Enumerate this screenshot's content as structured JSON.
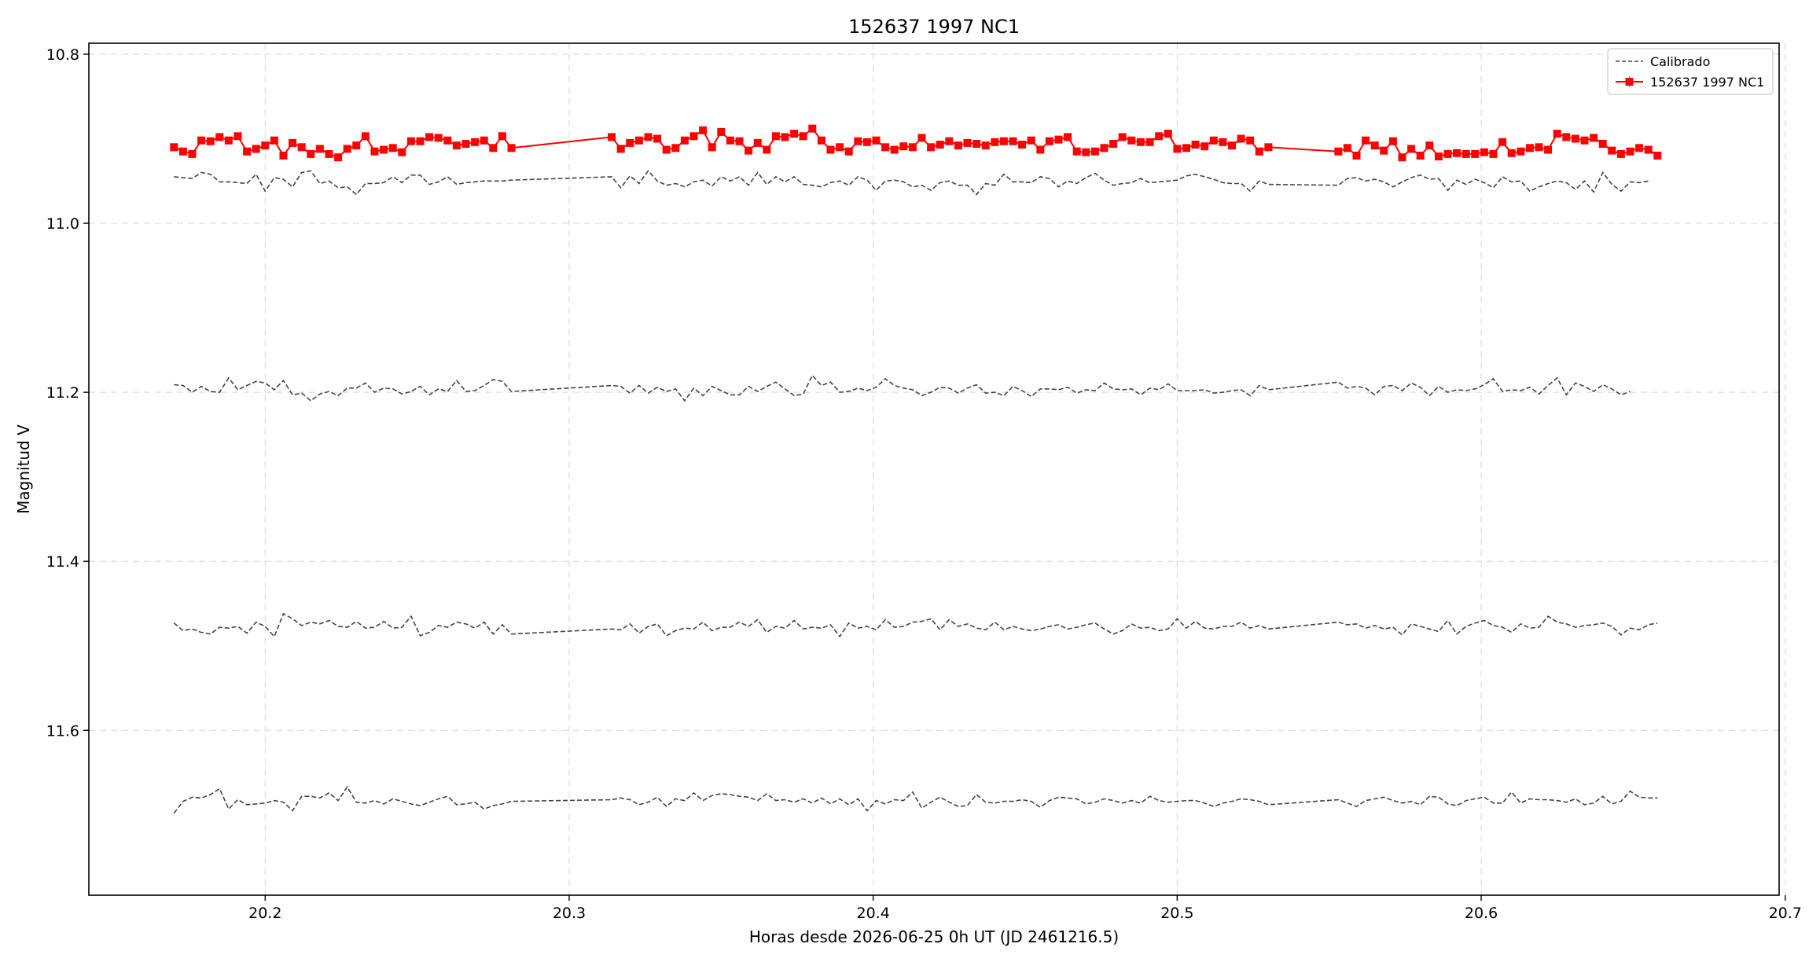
{
  "chart_data": {
    "type": "line",
    "title": "152637 1997 NC1",
    "xlabel": "Horas desde 2026-06-25 0h UT (JD 2461216.5)",
    "ylabel": "Magnitud V",
    "xlim": [
      20.142,
      20.698
    ],
    "ylim": [
      11.795,
      10.787
    ],
    "y_inverted": true,
    "grid": true,
    "legend_position": "top-right",
    "xticks": [
      20.2,
      20.3,
      20.4,
      20.5,
      20.6,
      20.7
    ],
    "yticks": [
      10.8,
      11.0,
      11.2,
      11.4,
      11.6
    ],
    "xtick_labels": [
      "20.2",
      "20.3",
      "20.4",
      "20.5",
      "20.6",
      "20.7"
    ],
    "ytick_labels": [
      "10.8",
      "11.0",
      "11.2",
      "11.4",
      "11.6"
    ],
    "legend": {
      "calibrated_label": "Calibrado",
      "target_label": "152637 1997 NC1"
    },
    "colors": {
      "target": "#ff0000",
      "calibrated": "#444444",
      "grid": "#dddddd"
    },
    "x_start": 20.17,
    "x_step": 0.003,
    "gap_after_index": 37,
    "gap_x_end": 20.314,
    "gap2_after_index": 110,
    "gap2_x_end": 20.553,
    "series": [
      {
        "name": "152637 1997 NC1",
        "values": [
          10.91,
          10.915,
          10.918,
          10.902,
          10.903,
          10.898,
          10.902,
          10.897,
          10.915,
          10.912,
          10.908,
          10.902,
          10.92,
          10.905,
          10.91,
          10.918,
          10.912,
          10.918,
          10.922,
          10.912,
          10.908,
          10.897,
          10.915,
          10.913,
          10.911,
          10.916,
          10.903,
          10.903,
          10.898,
          10.899,
          10.902,
          10.908,
          10.906,
          10.904,
          10.902,
          10.911,
          10.897,
          10.911,
          10.898,
          10.912,
          10.905,
          10.902,
          10.898,
          10.9,
          10.913,
          10.911,
          10.902,
          10.897,
          10.89,
          10.91,
          10.892,
          10.902,
          10.903,
          10.914,
          10.905,
          10.913,
          10.897,
          10.898,
          10.894,
          10.897,
          10.888,
          10.902,
          10.913,
          10.91,
          10.915,
          10.903,
          10.904,
          10.902,
          10.91,
          10.913,
          10.909,
          10.91,
          10.899,
          10.91,
          10.907,
          10.903,
          10.908,
          10.905,
          10.906,
          10.908,
          10.904,
          10.903,
          10.903,
          10.907,
          10.902,
          10.913,
          10.903,
          10.901,
          10.898,
          10.915,
          10.916,
          10.915,
          10.911,
          10.906,
          10.898,
          10.902,
          10.904,
          10.904,
          10.897,
          10.894,
          10.912,
          10.911,
          10.907,
          10.909,
          10.902,
          10.904,
          10.908,
          10.9,
          10.902,
          10.915,
          10.91,
          10.915,
          10.911,
          10.92,
          10.902,
          10.908,
          10.914,
          10.903,
          10.922,
          10.912,
          10.92,
          10.908,
          10.921,
          10.918,
          10.917,
          10.918,
          10.918,
          10.916,
          10.918,
          10.904,
          10.917,
          10.915,
          10.911,
          10.91,
          10.913,
          10.894,
          10.898,
          10.9,
          10.902,
          10.899,
          10.906,
          10.914,
          10.918,
          10.915,
          10.911,
          10.913,
          10.92
        ]
      },
      {
        "name": "Calibrado",
        "values": [
          10.945,
          10.946,
          10.947,
          10.94,
          10.942,
          10.951,
          10.951,
          10.952,
          10.953,
          10.942,
          10.962,
          10.946,
          10.948,
          10.957,
          10.94,
          10.938,
          10.953,
          10.95,
          10.958,
          10.957,
          10.966,
          10.953,
          10.953,
          10.952,
          10.945,
          10.952,
          10.943,
          10.943,
          10.954,
          10.951,
          10.945,
          10.954,
          10.952,
          10.951,
          10.95,
          10.95,
          10.95,
          10.949,
          10.945,
          10.958,
          10.944,
          10.953,
          10.938,
          10.95,
          10.955,
          10.953,
          10.957,
          10.951,
          10.949,
          10.956,
          10.945,
          10.95,
          10.945,
          10.955,
          10.94,
          10.954,
          10.945,
          10.951,
          10.945,
          10.954,
          10.955,
          10.957,
          10.952,
          10.95,
          10.955,
          10.945,
          10.949,
          10.961,
          10.95,
          10.949,
          10.951,
          10.957,
          10.955,
          10.961,
          10.952,
          10.95,
          10.955,
          10.955,
          10.966,
          10.953,
          10.955,
          10.942,
          10.951,
          10.951,
          10.952,
          10.945,
          10.947,
          10.957,
          10.95,
          10.953,
          10.946,
          10.941,
          10.949,
          10.955,
          10.953,
          10.952,
          10.947,
          10.952,
          10.951,
          10.95,
          10.949,
          10.944,
          10.942,
          10.945,
          10.948,
          10.952,
          10.953,
          10.953,
          10.962,
          10.95,
          10.954,
          10.955,
          10.947,
          10.946,
          10.95,
          10.948,
          10.951,
          10.957,
          10.951,
          10.946,
          10.943,
          10.948,
          10.947,
          10.961,
          10.949,
          10.954,
          10.948,
          10.952,
          10.958,
          10.945,
          10.951,
          10.95,
          10.962,
          10.957,
          10.953,
          10.95,
          10.952,
          10.96,
          10.95,
          10.963,
          10.94,
          10.954,
          10.962,
          10.951,
          10.952,
          10.95
        ]
      },
      {
        "name": "",
        "values": [
          11.191,
          11.192,
          11.2,
          11.193,
          11.199,
          11.2,
          11.183,
          11.197,
          11.192,
          11.187,
          11.189,
          11.197,
          11.186,
          11.203,
          11.201,
          11.21,
          11.202,
          11.199,
          11.204,
          11.195,
          11.195,
          11.189,
          11.2,
          11.195,
          11.196,
          11.202,
          11.199,
          11.193,
          11.203,
          11.196,
          11.199,
          11.186,
          11.199,
          11.198,
          11.192,
          11.185,
          11.187,
          11.199,
          11.192,
          11.193,
          11.201,
          11.192,
          11.201,
          11.194,
          11.199,
          11.196,
          11.21,
          11.195,
          11.204,
          11.193,
          11.198,
          11.203,
          11.203,
          11.193,
          11.199,
          11.193,
          11.188,
          11.196,
          11.204,
          11.202,
          11.18,
          11.192,
          11.188,
          11.2,
          11.199,
          11.195,
          11.198,
          11.194,
          11.184,
          11.192,
          11.195,
          11.197,
          11.204,
          11.2,
          11.194,
          11.195,
          11.201,
          11.195,
          11.191,
          11.201,
          11.2,
          11.204,
          11.193,
          11.198,
          11.205,
          11.196,
          11.196,
          11.197,
          11.194,
          11.201,
          11.197,
          11.198,
          11.189,
          11.196,
          11.197,
          11.196,
          11.203,
          11.195,
          11.197,
          11.19,
          11.198,
          11.198,
          11.198,
          11.197,
          11.201,
          11.2,
          11.198,
          11.197,
          11.204,
          11.192,
          11.197,
          11.188,
          11.195,
          11.193,
          11.195,
          11.203,
          11.193,
          11.192,
          11.198,
          11.189,
          11.194,
          11.204,
          11.193,
          11.2,
          11.197,
          11.198,
          11.196,
          11.191,
          11.184,
          11.199,
          11.197,
          11.198,
          11.194,
          11.202,
          11.192,
          11.183,
          11.203,
          11.189,
          11.193,
          11.199,
          11.191,
          11.196,
          11.203,
          11.199
        ]
      },
      {
        "name": "",
        "values": [
          11.473,
          11.482,
          11.48,
          11.484,
          11.486,
          11.478,
          11.479,
          11.477,
          11.485,
          11.472,
          11.477,
          11.489,
          11.462,
          11.468,
          11.476,
          11.472,
          11.474,
          11.47,
          11.477,
          11.478,
          11.471,
          11.479,
          11.478,
          11.471,
          11.479,
          11.478,
          11.465,
          11.488,
          11.484,
          11.476,
          11.478,
          11.472,
          11.474,
          11.479,
          11.472,
          11.486,
          11.475,
          11.486,
          11.48,
          11.481,
          11.474,
          11.485,
          11.477,
          11.474,
          11.488,
          11.482,
          11.479,
          11.48,
          11.472,
          11.482,
          11.478,
          11.478,
          11.472,
          11.477,
          11.469,
          11.484,
          11.477,
          11.479,
          11.47,
          11.48,
          11.478,
          11.479,
          11.475,
          11.489,
          11.473,
          11.479,
          11.477,
          11.481,
          11.469,
          11.478,
          11.477,
          11.472,
          11.471,
          11.468,
          11.481,
          11.469,
          11.477,
          11.474,
          11.479,
          11.481,
          11.472,
          11.481,
          11.477,
          11.48,
          11.482,
          11.48,
          11.477,
          11.475,
          11.48,
          11.478,
          11.475,
          11.473,
          11.48,
          11.486,
          11.482,
          11.474,
          11.479,
          11.478,
          11.482,
          11.48,
          11.468,
          11.479,
          11.471,
          11.479,
          11.48,
          11.477,
          11.477,
          11.472,
          11.479,
          11.476,
          11.48,
          11.472,
          11.475,
          11.474,
          11.479,
          11.476,
          11.48,
          11.478,
          11.487,
          11.474,
          11.477,
          11.48,
          11.483,
          11.47,
          11.486,
          11.477,
          11.473,
          11.47,
          11.476,
          11.478,
          11.484,
          11.474,
          11.479,
          11.478,
          11.465,
          11.472,
          11.474,
          11.478,
          11.476,
          11.475,
          11.473,
          11.477,
          11.487,
          11.479,
          11.481,
          11.475,
          11.473
        ]
      },
      {
        "name": "",
        "values": [
          11.698,
          11.684,
          11.679,
          11.68,
          11.676,
          11.669,
          11.693,
          11.682,
          11.688,
          11.687,
          11.686,
          11.683,
          11.685,
          11.695,
          11.678,
          11.678,
          11.68,
          11.674,
          11.683,
          11.667,
          11.685,
          11.686,
          11.683,
          11.687,
          11.681,
          11.684,
          11.687,
          11.689,
          11.685,
          11.681,
          11.678,
          11.688,
          11.687,
          11.685,
          11.693,
          11.689,
          11.687,
          11.684,
          11.682,
          11.68,
          11.682,
          11.688,
          11.685,
          11.679,
          11.69,
          11.681,
          11.683,
          11.674,
          11.683,
          11.677,
          11.675,
          11.676,
          11.678,
          11.679,
          11.683,
          11.675,
          11.683,
          11.682,
          11.685,
          11.681,
          11.686,
          11.68,
          11.687,
          11.681,
          11.688,
          11.681,
          11.695,
          11.683,
          11.687,
          11.682,
          11.683,
          11.673,
          11.692,
          11.685,
          11.679,
          11.685,
          11.69,
          11.689,
          11.676,
          11.685,
          11.686,
          11.684,
          11.684,
          11.682,
          11.684,
          11.691,
          11.683,
          11.679,
          11.68,
          11.681,
          11.687,
          11.685,
          11.681,
          11.683,
          11.686,
          11.683,
          11.686,
          11.678,
          11.683,
          11.685,
          11.684,
          11.683,
          11.683,
          11.686,
          11.69,
          11.686,
          11.684,
          11.681,
          11.682,
          11.684,
          11.688,
          11.682,
          11.686,
          11.69,
          11.683,
          11.681,
          11.679,
          11.683,
          11.686,
          11.684,
          11.688,
          11.678,
          11.679,
          11.687,
          11.689,
          11.683,
          11.681,
          11.679,
          11.686,
          11.686,
          11.673,
          11.686,
          11.681,
          11.682,
          11.682,
          11.683,
          11.685,
          11.681,
          11.688,
          11.686,
          11.678,
          11.687,
          11.684,
          11.672,
          11.679,
          11.68,
          11.68
        ]
      }
    ]
  }
}
